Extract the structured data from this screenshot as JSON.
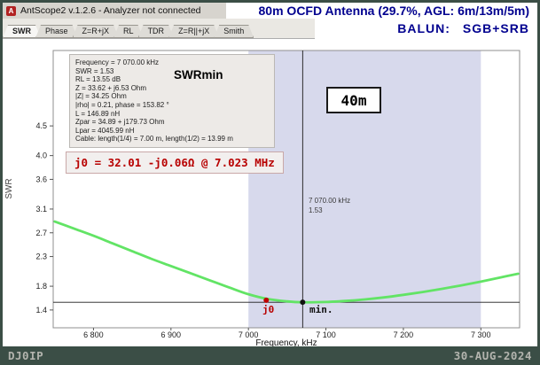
{
  "window": {
    "title": "AntScope2 v.1.2.6 - Analyzer not connected",
    "app_icon_glyph": "A"
  },
  "header": {
    "line1": "80m OCFD Antenna (29.7%, AGL: 6m/13m/5m)",
    "balun_label": "BALUN:",
    "balun_value": "SGB+SRB"
  },
  "tabs": [
    {
      "label": "SWR",
      "active": true
    },
    {
      "label": "Phase",
      "active": false
    },
    {
      "label": "Z=R+jX",
      "active": false
    },
    {
      "label": "RL",
      "active": false
    },
    {
      "label": "TDR",
      "active": false
    },
    {
      "label": "Z=R||+jX",
      "active": false
    },
    {
      "label": "Smith",
      "active": false
    }
  ],
  "info_box": {
    "lines": [
      "Frequency = 7 070.00 kHz",
      "SWR = 1.53",
      "RL = 13.55 dB",
      "Z = 33.62 + j6.53 Ohm",
      "|Z| = 34.25 Ohm",
      "|rho| = 0.21, phase = 153.82 °",
      "L = 146.89 nH",
      "Zpar = 34.89 + j179.73 Ohm",
      "Lpar = 4045.99 nH",
      "Cable: length(1/4) = 7.00 m, length(1/2) = 13.99 m"
    ]
  },
  "annotations": {
    "swrmin": "SWRmin",
    "j0_box": "j0 = 32.01 -j0.06Ω @ 7.023 MHz",
    "band_label": "40m",
    "cursor_freq": "7 070.00 kHz",
    "cursor_swr": "1.53",
    "j0_point": "j0",
    "min_point": "min."
  },
  "statusbar": {
    "left": "DJ0IP",
    "right": "30-AUG-2024"
  },
  "colors": {
    "accent_navy": "#00008f",
    "annotation_red": "#b80000",
    "curve_green": "#62e465",
    "band_lavender": "#d7d9ec",
    "frame_dark": "#3b4e46"
  },
  "chart_data": {
    "type": "line",
    "title": "",
    "xlabel": "Frequency, kHz",
    "ylabel": "SWR",
    "x_range": [
      6748,
      7350
    ],
    "y_range": [
      1.1,
      5.77
    ],
    "grid": false,
    "legend": false,
    "x_ticks": [
      {
        "value": 6800,
        "label": "6 800"
      },
      {
        "value": 6900,
        "label": "6 900"
      },
      {
        "value": 7000,
        "label": "7 000"
      },
      {
        "value": 7100,
        "label": "7 100"
      },
      {
        "value": 7200,
        "label": "7 200"
      },
      {
        "value": 7300,
        "label": "7 300"
      }
    ],
    "y_ticks": [
      {
        "value": 1.4,
        "label": "1.4"
      },
      {
        "value": 1.8,
        "label": "1.8"
      },
      {
        "value": 2.3,
        "label": "2.3"
      },
      {
        "value": 2.7,
        "label": "2.7"
      },
      {
        "value": 3.1,
        "label": "3.1"
      },
      {
        "value": 3.6,
        "label": "3.6"
      },
      {
        "value": 4.0,
        "label": "4.0"
      },
      {
        "value": 4.5,
        "label": "4.5"
      }
    ],
    "band_region": {
      "from": 7000,
      "to": 7300,
      "color": "#d7d9ec",
      "label": "40m"
    },
    "cursor": {
      "freq": 7070,
      "swr": 1.53
    },
    "min_line_swr": 1.53,
    "markers": [
      {
        "name": "j0",
        "freq": 7023,
        "swr": 1.565,
        "color": "#c00000"
      },
      {
        "name": "min",
        "freq": 7070,
        "swr": 1.53,
        "color": "#111111"
      }
    ],
    "series": [
      {
        "name": "SWR",
        "color": "#62e465",
        "x": [
          6750,
          6775,
          6800,
          6825,
          6850,
          6875,
          6900,
          6925,
          6950,
          6975,
          7000,
          7025,
          7050,
          7070,
          7100,
          7125,
          7150,
          7175,
          7200,
          7225,
          7250,
          7275,
          7300,
          7325,
          7348
        ],
        "y": [
          2.89,
          2.77,
          2.65,
          2.52,
          2.39,
          2.26,
          2.14,
          2.02,
          1.9,
          1.78,
          1.665,
          1.585,
          1.545,
          1.53,
          1.535,
          1.552,
          1.578,
          1.612,
          1.655,
          1.703,
          1.757,
          1.815,
          1.878,
          1.947,
          2.01
        ]
      }
    ]
  }
}
